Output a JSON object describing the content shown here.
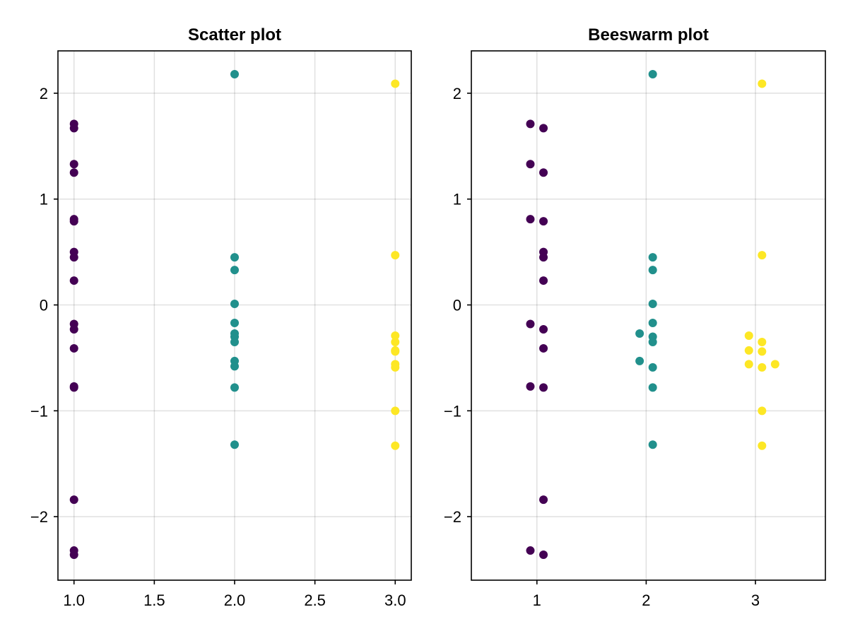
{
  "chart_data": [
    {
      "type": "scatter",
      "title": "Scatter plot",
      "xlabel": "",
      "ylabel": "",
      "xlim": [
        0.9,
        3.1
      ],
      "ylim": [
        -2.6,
        2.4
      ],
      "xticks": [
        1.0,
        1.5,
        2.0,
        2.5,
        3.0
      ],
      "xtick_labels": [
        "1.0",
        "1.5",
        "2.0",
        "2.5",
        "3.0"
      ],
      "yticks": [
        -2,
        -1,
        0,
        1,
        2
      ],
      "ytick_labels": [
        "−2",
        "−1",
        "0",
        "1",
        "2"
      ],
      "grid": true,
      "legend": "none",
      "series": [
        {
          "color": "#440154",
          "points": [
            [
              1,
              1.71
            ],
            [
              1,
              1.67
            ],
            [
              1,
              1.33
            ],
            [
              1,
              1.25
            ],
            [
              1,
              0.81
            ],
            [
              1,
              0.79
            ],
            [
              1,
              0.5
            ],
            [
              1,
              0.45
            ],
            [
              1,
              0.23
            ],
            [
              1,
              -0.18
            ],
            [
              1,
              -0.23
            ],
            [
              1,
              -0.41
            ],
            [
              1,
              -0.77
            ],
            [
              1,
              -0.78
            ],
            [
              1,
              -1.84
            ],
            [
              1,
              -2.32
            ],
            [
              1,
              -2.36
            ]
          ]
        },
        {
          "color": "#21908C",
          "points": [
            [
              2,
              2.18
            ],
            [
              2,
              0.45
            ],
            [
              2,
              0.33
            ],
            [
              2,
              0.01
            ],
            [
              2,
              -0.17
            ],
            [
              2,
              -0.27
            ],
            [
              2,
              -0.3
            ],
            [
              2,
              -0.35
            ],
            [
              2,
              -0.53
            ],
            [
              2,
              -0.58
            ],
            [
              2,
              -0.78
            ],
            [
              2,
              -1.32
            ]
          ]
        },
        {
          "color": "#FDE725",
          "points": [
            [
              3,
              2.09
            ],
            [
              3,
              0.47
            ],
            [
              3,
              -0.29
            ],
            [
              3,
              -0.35
            ],
            [
              3,
              -0.43
            ],
            [
              3,
              -0.44
            ],
            [
              3,
              -0.56
            ],
            [
              3,
              -0.59
            ],
            [
              3,
              -1.0
            ],
            [
              3,
              -1.33
            ]
          ]
        }
      ]
    },
    {
      "type": "scatter",
      "title": "Beeswarm plot",
      "xlabel": "",
      "ylabel": "",
      "xlim": [
        0.4,
        3.64
      ],
      "ylim": [
        -2.6,
        2.4
      ],
      "xticks": [
        1,
        2,
        3
      ],
      "xtick_labels": [
        "1",
        "2",
        "3"
      ],
      "yticks": [
        -2,
        -1,
        0,
        1,
        2
      ],
      "ytick_labels": [
        "−2",
        "−1",
        "0",
        "1",
        "2"
      ],
      "grid": true,
      "legend": "none",
      "series": [
        {
          "color": "#440154",
          "points": [
            [
              0.94,
              1.71
            ],
            [
              1.06,
              1.67
            ],
            [
              0.94,
              1.33
            ],
            [
              1.06,
              1.25
            ],
            [
              0.94,
              0.81
            ],
            [
              1.06,
              0.79
            ],
            [
              1.06,
              0.5
            ],
            [
              1.06,
              0.45
            ],
            [
              1.06,
              0.23
            ],
            [
              0.94,
              -0.18
            ],
            [
              1.06,
              -0.23
            ],
            [
              1.06,
              -0.41
            ],
            [
              0.94,
              -0.77
            ],
            [
              1.06,
              -0.78
            ],
            [
              1.06,
              -1.84
            ],
            [
              0.94,
              -2.32
            ],
            [
              1.06,
              -2.36
            ]
          ]
        },
        {
          "color": "#21908C",
          "points": [
            [
              2.06,
              2.18
            ],
            [
              2.06,
              0.45
            ],
            [
              2.06,
              0.33
            ],
            [
              2.06,
              0.01
            ],
            [
              2.06,
              -0.17
            ],
            [
              1.94,
              -0.27
            ],
            [
              2.06,
              -0.3
            ],
            [
              2.06,
              -0.35
            ],
            [
              1.94,
              -0.53
            ],
            [
              2.06,
              -0.59
            ],
            [
              2.06,
              -0.78
            ],
            [
              2.06,
              -1.32
            ]
          ]
        },
        {
          "color": "#FDE725",
          "points": [
            [
              3.06,
              2.09
            ],
            [
              3.06,
              0.47
            ],
            [
              2.94,
              -0.29
            ],
            [
              3.06,
              -0.35
            ],
            [
              2.94,
              -0.43
            ],
            [
              3.06,
              -0.44
            ],
            [
              2.94,
              -0.56
            ],
            [
              3.18,
              -0.56
            ],
            [
              3.06,
              -0.59
            ],
            [
              3.06,
              -1.0
            ],
            [
              3.06,
              -1.33
            ]
          ]
        }
      ]
    }
  ]
}
